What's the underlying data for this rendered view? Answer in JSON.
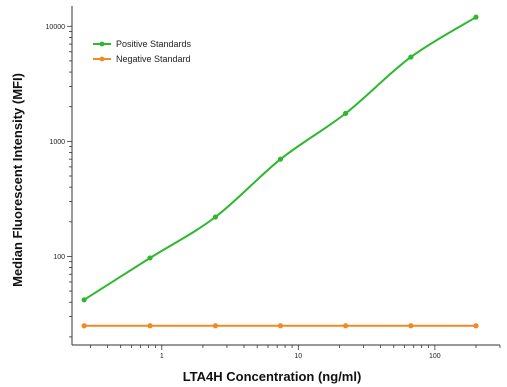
{
  "chart_data": {
    "type": "scatter",
    "title": "",
    "xlabel": "LTA4H Concentration (ng/ml)",
    "ylabel": "Median Fluorescent Intensity  (MFI)",
    "xscale": "log",
    "yscale": "log",
    "xlim": [
      0.22,
      300
    ],
    "ylim": [
      17,
      15000
    ],
    "x_ticks": [
      1,
      10,
      100
    ],
    "x_tick_labels": [
      "1",
      "10",
      "100"
    ],
    "y_ticks": [
      100,
      1000,
      10000
    ],
    "y_tick_labels": [
      "100",
      "1000",
      "10000"
    ],
    "grid": false,
    "legend_position": "top-left",
    "series": [
      {
        "name": "Positive Standards",
        "color": "#2eb82e",
        "marker": "circle",
        "fit": "smooth curve",
        "x": [
          0.27,
          0.82,
          2.47,
          7.4,
          22.2,
          66.7,
          200
        ],
        "y": [
          42,
          97,
          220,
          700,
          1750,
          5400,
          12000
        ]
      },
      {
        "name": "Negative Standard",
        "color": "#f08a24",
        "marker": "circle",
        "fit": "line",
        "x": [
          0.27,
          0.82,
          2.47,
          7.4,
          22.2,
          66.7,
          200
        ],
        "y": [
          25,
          25,
          25,
          25,
          25,
          25,
          25
        ]
      }
    ]
  }
}
